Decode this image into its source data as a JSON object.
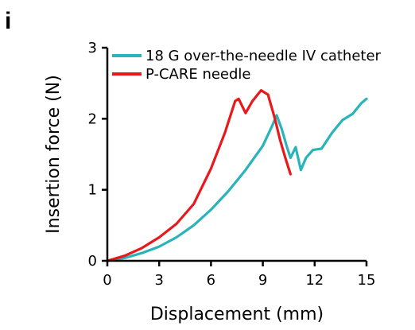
{
  "panel_label": "i",
  "chart_data": {
    "type": "line",
    "xlabel": "Displacement (mm)",
    "ylabel": "Insertion force (N)",
    "xlim": [
      0,
      15
    ],
    "ylim": [
      0,
      3
    ],
    "xticks": [
      0,
      3,
      6,
      9,
      12,
      15
    ],
    "xtick_labels": [
      "0",
      "3",
      "6",
      "9",
      "12",
      "15"
    ],
    "yticks": [
      0,
      1,
      2,
      3
    ],
    "ytick_labels": [
      "0",
      "1",
      "2",
      "3"
    ],
    "grid": false,
    "legend_position": "top-right",
    "series": [
      {
        "name": "18 G over-the-needle IV catheter",
        "color": "#2ab3b8",
        "x": [
          0,
          1,
          2,
          3,
          4,
          5,
          6,
          7,
          8,
          9,
          9.5,
          9.8,
          10.1,
          10.4,
          10.6,
          10.9,
          11.2,
          11.5,
          11.9,
          12.4,
          13,
          13.6,
          14.2,
          14.7,
          15
        ],
        "y": [
          0,
          0.04,
          0.11,
          0.2,
          0.33,
          0.5,
          0.72,
          0.98,
          1.28,
          1.62,
          1.88,
          2.05,
          1.85,
          1.6,
          1.45,
          1.6,
          1.28,
          1.45,
          1.56,
          1.58,
          1.8,
          1.98,
          2.07,
          2.22,
          2.28
        ]
      },
      {
        "name": "P-CARE needle",
        "color": "#e8191c",
        "x": [
          0,
          1,
          2,
          3,
          4,
          5,
          6,
          6.8,
          7.4,
          7.6,
          8,
          8.4,
          8.9,
          9.3,
          9.7,
          10,
          10.3,
          10.6
        ],
        "y": [
          0,
          0.07,
          0.18,
          0.33,
          0.52,
          0.8,
          1.3,
          1.8,
          2.25,
          2.28,
          2.08,
          2.25,
          2.4,
          2.34,
          2.0,
          1.7,
          1.45,
          1.22
        ]
      }
    ]
  }
}
